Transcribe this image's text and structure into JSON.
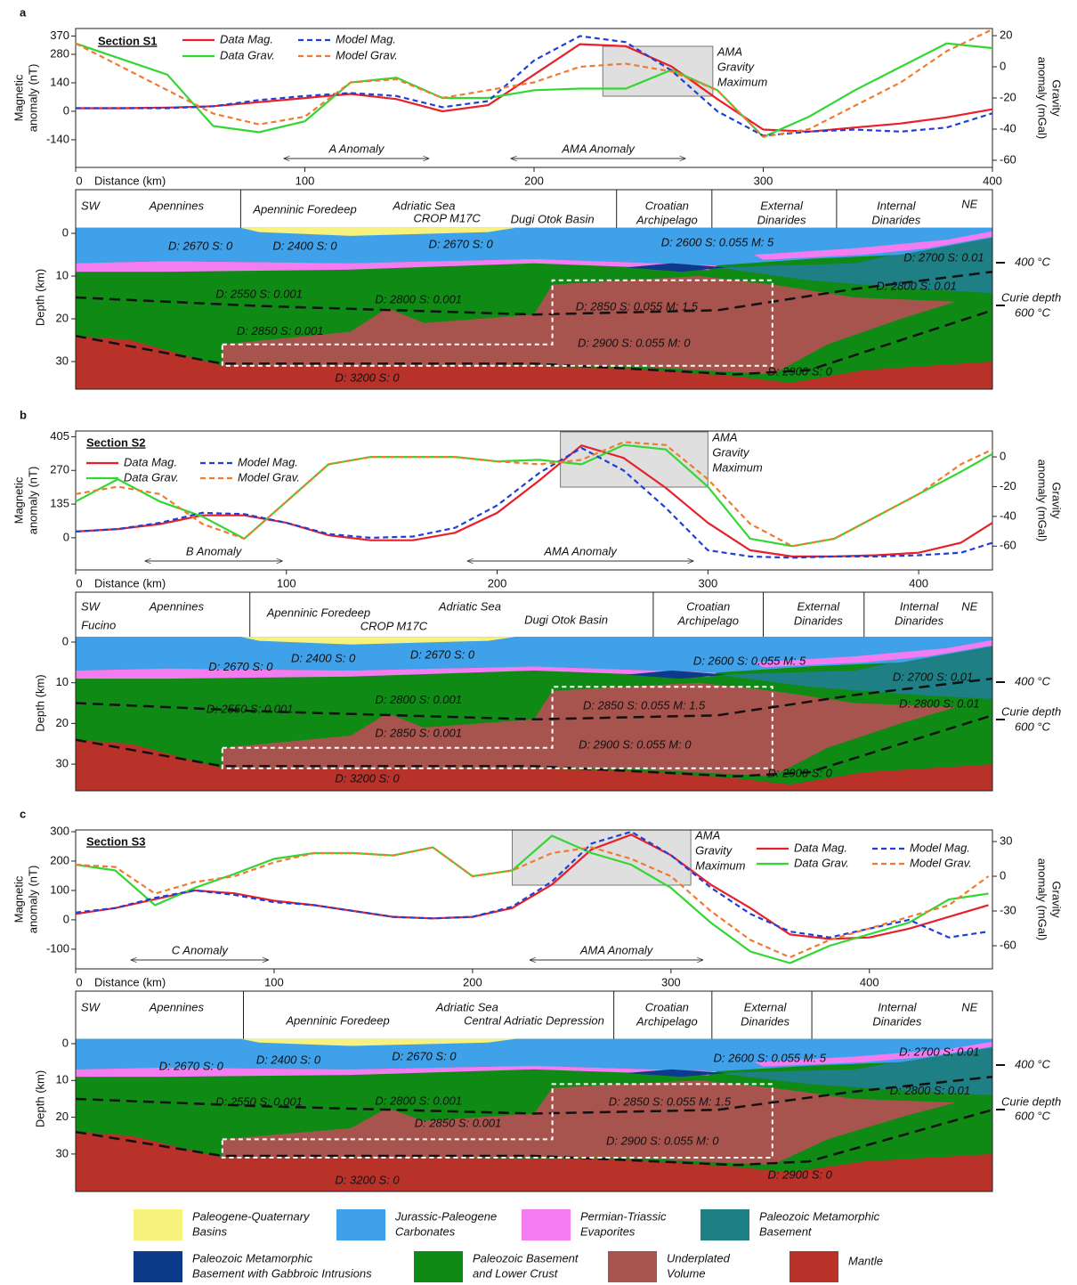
{
  "chart_data": [
    {
      "type": "line",
      "panel": "a",
      "title": "Section S1",
      "x_label": "Distance (km)",
      "y_label": [
        "Magnetic",
        "anomaly (nT)"
      ],
      "y2_label": [
        "Gravity",
        "anomaly (mGal)"
      ],
      "x": [
        0,
        20,
        40,
        60,
        80,
        100,
        120,
        140,
        160,
        180,
        200,
        220,
        240,
        260,
        280,
        300,
        320,
        340,
        360,
        380,
        400
      ],
      "xlim": [
        0,
        400
      ],
      "xticks": [
        0,
        100,
        200,
        300,
        400
      ],
      "ylim": [
        -276,
        407
      ],
      "yticks": [
        -140,
        0,
        140,
        280,
        370
      ],
      "y2lim": [
        -64.6,
        24.6
      ],
      "y2ticks": [
        -60,
        -40,
        -20,
        0,
        20
      ],
      "series": [
        {
          "name": "Data Mag.",
          "color": "#e8202a",
          "style": "solid",
          "values": [
            15,
            15,
            18,
            25,
            45,
            65,
            85,
            60,
            0,
            30,
            180,
            330,
            320,
            220,
            60,
            -90,
            -100,
            -80,
            -60,
            -30,
            10
          ]
        },
        {
          "name": "Data Grav.",
          "color": "#33d633",
          "style": "solid",
          "axis": "y2",
          "values": [
            15,
            5,
            -5,
            -38,
            -42,
            -35,
            -10,
            -7,
            -20,
            -20,
            -15,
            -14,
            -14,
            -2,
            -15,
            -45,
            -32,
            -15,
            0,
            15,
            12
          ]
        },
        {
          "name": "Model Mag.",
          "color": "#1f3fd6",
          "style": "dashed",
          "values": [
            15,
            15,
            15,
            25,
            55,
            75,
            90,
            75,
            20,
            50,
            250,
            370,
            340,
            200,
            0,
            -120,
            -100,
            -90,
            -100,
            -80,
            -10
          ]
        },
        {
          "name": "Model Grav.",
          "color": "#f07a30",
          "style": "dashed",
          "axis": "y2",
          "values": [
            15,
            0,
            -15,
            -30,
            -37,
            -32,
            -10,
            -8,
            -20,
            -15,
            -10,
            0,
            2,
            -3,
            -15,
            -45,
            -40,
            -25,
            -10,
            10,
            24
          ]
        }
      ],
      "annotations": [
        "A Anomaly",
        "AMA Anomaly"
      ],
      "box_label": [
        "AMA",
        "Gravity",
        "Maximum"
      ]
    },
    {
      "type": "line",
      "panel": "b",
      "title": "Section S2",
      "x_label": "Distance (km)",
      "y_label": [
        "Magnetic",
        "anomaly (nT)"
      ],
      "y2_label": [
        "Gravity",
        "anomaly (mGal)"
      ],
      "x": [
        0,
        20,
        40,
        60,
        80,
        100,
        120,
        140,
        160,
        180,
        200,
        220,
        240,
        260,
        280,
        300,
        320,
        340,
        360,
        380,
        400,
        420,
        435
      ],
      "xlim": [
        0,
        435
      ],
      "xticks": [
        0,
        100,
        200,
        300,
        400
      ],
      "ylim": [
        -129,
        428
      ],
      "yticks": [
        0,
        135,
        270,
        405
      ],
      "y2lim": [
        -76,
        17.4
      ],
      "y2ticks": [
        -60,
        -40,
        -20,
        0
      ],
      "series": [
        {
          "name": "Data Mag.",
          "color": "#e8202a",
          "style": "solid",
          "values": [
            25,
            35,
            55,
            90,
            90,
            60,
            10,
            -10,
            -10,
            20,
            100,
            230,
            370,
            320,
            200,
            60,
            -50,
            -75,
            -75,
            -70,
            -60,
            -20,
            60
          ]
        },
        {
          "name": "Data Grav.",
          "color": "#33d633",
          "style": "solid",
          "axis": "y2",
          "values": [
            -30,
            -15,
            -30,
            -40,
            -55,
            -30,
            -5,
            0,
            0,
            0,
            -3,
            -2,
            -5,
            8,
            5,
            -20,
            -55,
            -60,
            -55,
            -40,
            -25,
            -10,
            2
          ]
        },
        {
          "name": "Model Mag.",
          "color": "#1f3fd6",
          "style": "dashed",
          "values": [
            25,
            35,
            60,
            100,
            95,
            60,
            15,
            0,
            5,
            40,
            130,
            260,
            360,
            270,
            120,
            -50,
            -75,
            -80,
            -75,
            -75,
            -70,
            -60,
            -20
          ]
        },
        {
          "name": "Model Grav.",
          "color": "#f07a30",
          "style": "dashed",
          "axis": "y2",
          "values": [
            -25,
            -20,
            -25,
            -45,
            -55,
            -30,
            -5,
            0,
            0,
            0,
            -3,
            -5,
            -2,
            10,
            8,
            -15,
            -45,
            -60,
            -55,
            -40,
            -25,
            -5,
            5
          ]
        }
      ],
      "annotations": [
        "B Anomaly",
        "AMA Anomaly"
      ],
      "box_label": [
        "AMA",
        "Gravity",
        "Maximum"
      ]
    },
    {
      "type": "line",
      "panel": "c",
      "title": "Section S3",
      "x_label": "Distance (km)",
      "y_label": [
        "Magnetic",
        "anomaly (nT)"
      ],
      "y2_label": [
        "Gravity",
        "anomaly (mGal)"
      ],
      "x": [
        0,
        20,
        40,
        60,
        80,
        100,
        120,
        140,
        160,
        180,
        200,
        220,
        240,
        260,
        280,
        300,
        320,
        340,
        360,
        380,
        400,
        420,
        440,
        460
      ],
      "xlim": [
        0,
        462
      ],
      "xticks": [
        0,
        100,
        200,
        300,
        400
      ],
      "ylim": [
        -167,
        306
      ],
      "yticks": [
        -100,
        0,
        100,
        200,
        300
      ],
      "y2lim": [
        -80,
        40
      ],
      "y2ticks": [
        -60,
        -30,
        0,
        30
      ],
      "series": [
        {
          "name": "Data Mag.",
          "color": "#e8202a",
          "style": "solid",
          "values": [
            20,
            40,
            70,
            100,
            90,
            65,
            50,
            30,
            10,
            5,
            10,
            40,
            120,
            240,
            290,
            220,
            120,
            40,
            -50,
            -65,
            -60,
            -30,
            10,
            50
          ]
        },
        {
          "name": "Data Grav.",
          "color": "#33d633",
          "style": "solid",
          "axis": "y2",
          "values": [
            10,
            5,
            -25,
            -10,
            2,
            15,
            20,
            20,
            18,
            25,
            0,
            5,
            35,
            20,
            10,
            -10,
            -40,
            -65,
            -75,
            -60,
            -50,
            -40,
            -20,
            -15
          ]
        },
        {
          "name": "Model Mag.",
          "color": "#1f3fd6",
          "style": "dashed",
          "values": [
            25,
            40,
            75,
            100,
            85,
            60,
            50,
            30,
            10,
            5,
            10,
            45,
            130,
            260,
            300,
            220,
            110,
            20,
            -40,
            -60,
            -30,
            0,
            -60,
            -40
          ]
        },
        {
          "name": "Model Grav.",
          "color": "#f07a30",
          "style": "dashed",
          "axis": "y2",
          "values": [
            10,
            8,
            -15,
            -5,
            0,
            12,
            20,
            20,
            18,
            25,
            0,
            5,
            20,
            25,
            15,
            0,
            -30,
            -55,
            -70,
            -55,
            -45,
            -35,
            -25,
            0
          ]
        }
      ],
      "annotations": [
        "C Anomaly",
        "AMA Anomaly"
      ],
      "box_label": [
        "AMA",
        "Gravity",
        "Maximum"
      ]
    }
  ],
  "sections": [
    {
      "depth_label": "Depth (km)",
      "depth_ticks": [
        0,
        10,
        20,
        30
      ],
      "regions": [
        [
          "SW"
        ],
        [
          "Apennines"
        ],
        [
          "Apenninic Foredeep"
        ],
        [
          "Adriatic Sea"
        ],
        [
          "CROP M17C"
        ],
        [
          "Dugi Otok Basin"
        ],
        [
          "Croatian",
          "Archipelago"
        ],
        [
          "External",
          "Dinarides"
        ],
        [
          "Internal",
          "Dinarides"
        ],
        [
          "NE"
        ]
      ],
      "layers": [
        "D: 2670 S: 0",
        "D: 2400 S: 0",
        "D: 2670 S: 0",
        "D: 2600 S: 0.055 M: 5",
        "D: 2700 S: 0.01",
        "D: 2800 S: 0.01",
        "D: 2550 S: 0.001",
        "D: 2800 S: 0.001",
        "D: 2850 S: 0.055 M: 1.5",
        "D: 2850 S: 0.001",
        "D: 2900 S: 0.055 M: 0",
        "D: 3200 S: 0",
        "D: 2900 S: 0"
      ],
      "isotherms": [
        "400 °C",
        "Curie depth",
        "600 °C"
      ]
    },
    {
      "depth_label": "Depth (km)",
      "depth_ticks": [
        0,
        10,
        20,
        30
      ],
      "regions": [
        [
          "SW"
        ],
        [
          "Fucino"
        ],
        [
          "Apennines"
        ],
        [
          "Apenninic Foredeep"
        ],
        [
          "Adriatic Sea"
        ],
        [
          "CROP M17C"
        ],
        [
          "Dugi Otok Basin"
        ],
        [
          "Croatian",
          "Archipelago"
        ],
        [
          "External",
          "Dinarides"
        ],
        [
          "Internal",
          "Dinarides"
        ],
        [
          "NE"
        ]
      ],
      "layers": [
        "D: 2670 S: 0",
        "D: 2400 S: 0",
        "D: 2670 S: 0",
        "D: 2600 S: 0.055 M: 5",
        "D: 2700 S: 0.01",
        "D: 2800 S: 0.01",
        "D: 2550 S: 0.001",
        "D: 2800 S: 0.001",
        "D: 2850 S: 0.055 M: 1.5",
        "D: 2850 S: 0.001",
        "D: 2900 S: 0.055 M: 0",
        "D: 3200 S: 0",
        "D: 2900 S: 0"
      ],
      "isotherms": [
        "400 °C",
        "Curie depth",
        "600 °C"
      ]
    },
    {
      "depth_label": "Depth (km)",
      "depth_ticks": [
        0,
        10,
        20,
        30
      ],
      "regions": [
        [
          "SW"
        ],
        [
          "Apennines"
        ],
        [
          "Apenninic Foredeep"
        ],
        [
          "Adriatic Sea"
        ],
        [
          "Central Adriatic Depression"
        ],
        [
          "Croatian",
          "Archipelago"
        ],
        [
          "External",
          "Dinarides"
        ],
        [
          "Internal",
          "Dinarides"
        ],
        [
          "NE"
        ]
      ],
      "layers": [
        "D: 2670 S: 0",
        "D: 2400 S: 0",
        "D: 2670 S: 0",
        "D: 2600 S: 0.055 M: 5",
        "D: 2700 S: 0.01",
        "D: 2800 S: 0.01",
        "D: 2550 S: 0.001",
        "D: 2800 S: 0.001",
        "D: 2850 S: 0.055 M: 1.5",
        "D: 2850 S: 0.001",
        "D: 2900 S: 0.055 M: 0",
        "D: 3200 S: 0",
        "D: 2900 S: 0"
      ],
      "isotherms": [
        "400 °C",
        "Curie depth",
        "600 °C"
      ]
    }
  ],
  "legend": [
    {
      "label": [
        "Paleogene-Quaternary",
        "Basins"
      ],
      "color": "#f6f27d"
    },
    {
      "label": [
        "Jurassic-Paleogene",
        "Carbonates"
      ],
      "color": "#3fa1ea"
    },
    {
      "label": [
        "Permian-Triassic",
        "Evaporites"
      ],
      "color": "#f27cf0"
    },
    {
      "label": [
        "Paleozoic Metamorphic",
        "Basement"
      ],
      "color": "#1e7f85"
    },
    {
      "label": [
        "Paleozoic Metamorphic",
        "Basement with Gabbroic Intrusions"
      ],
      "color": "#0d3a8a"
    },
    {
      "label": [
        "Paleozoic Basement",
        "and Lower Crust"
      ],
      "color": "#0f8a15"
    },
    {
      "label": [
        "Underplated",
        "Volume"
      ],
      "color": "#a8544e"
    },
    {
      "label": [
        "Mantle"
      ],
      "color": "#b8322a"
    }
  ]
}
